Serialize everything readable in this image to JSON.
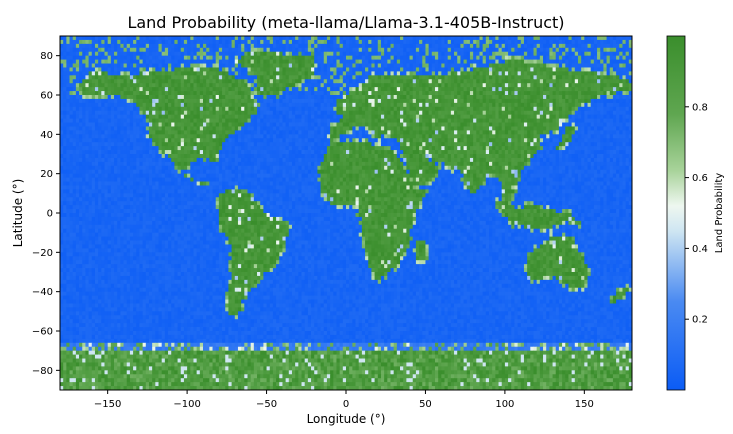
{
  "chart_data": {
    "type": "heatmap",
    "title": "Land Probability (meta-llama/Llama-3.1-405B-Instruct)",
    "xlabel": "Longitude (°)",
    "ylabel": "Latitude (°)",
    "xlim": [
      -180,
      180
    ],
    "ylim": [
      -90,
      90
    ],
    "x_ticks": [
      -150,
      -100,
      -50,
      0,
      50,
      100,
      150
    ],
    "y_ticks": [
      80,
      60,
      40,
      20,
      0,
      -20,
      -40,
      -60,
      -80
    ],
    "grid": false,
    "cell_size_deg": 2,
    "colorbar": {
      "label": "Land Probability",
      "range": [
        0,
        1
      ],
      "ticks": [
        0.2,
        0.4,
        0.6,
        0.8
      ],
      "colors": {
        "low": "#0b5cf5",
        "mid": "#e8f4f8",
        "high": "#3a8e2c"
      }
    },
    "land_regions_probability_high": [
      {
        "region": "North America",
        "lon": [
          -168,
          -55
        ],
        "lat": [
          15,
          72
        ]
      },
      {
        "region": "South America",
        "lon": [
          -82,
          -35
        ],
        "lat": [
          -55,
          12
        ]
      },
      {
        "region": "Europe/Asia",
        "lon": [
          -10,
          180
        ],
        "lat": [
          10,
          75
        ]
      },
      {
        "region": "Africa",
        "lon": [
          -18,
          52
        ],
        "lat": [
          -35,
          37
        ]
      },
      {
        "region": "Australia",
        "lon": [
          113,
          154
        ],
        "lat": [
          -39,
          -11
        ]
      },
      {
        "region": "Antarctica",
        "lon": [
          -180,
          180
        ],
        "lat": [
          -90,
          -70
        ]
      }
    ]
  }
}
